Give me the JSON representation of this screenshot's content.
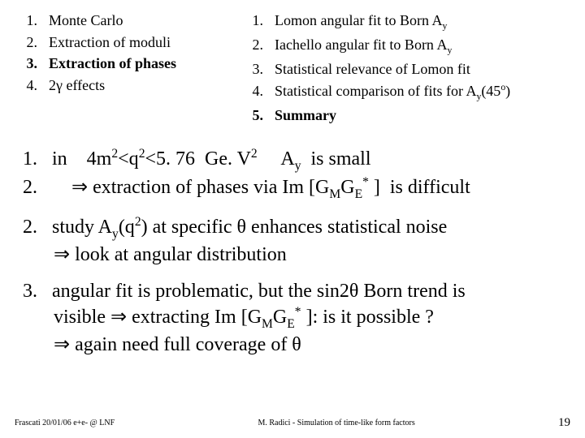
{
  "leftList": [
    {
      "n": "1.",
      "text": "Monte Carlo",
      "bold": false
    },
    {
      "n": "2.",
      "text": "Extraction of moduli",
      "bold": false
    },
    {
      "n": "3.",
      "text": "Extraction of phases",
      "bold": true
    },
    {
      "n": "4.",
      "text": "2γ effects",
      "bold": false
    }
  ],
  "rightList": [
    {
      "n": "1.",
      "html": "Lomon angular fit to Born A<sub>y</sub>",
      "bold": false
    },
    {
      "n": "2.",
      "html": "Iachello angular fit to Born A<sub>y</sub>",
      "bold": false
    },
    {
      "n": "3.",
      "html": "Statistical relevance of Lomon fit",
      "bold": false
    },
    {
      "n": "4.",
      "html": "Statistical comparison of fits for A<sub>y</sub>(45<sup>o</sup>)",
      "bold": false
    },
    {
      "n": "5.",
      "html": "Summary",
      "bold": true
    }
  ],
  "body": [
    "<span class='num'>1.</span> in&nbsp;&nbsp;&nbsp; 4m<sup>2</sup>&lt;q<sup>2</sup>&lt;5. 76&nbsp; Ge. V<sup>2</sup>&nbsp;&nbsp;&nbsp;&nbsp; A<sub>y</sub>&nbsp; is small<br><span class='num'>2.</span>&nbsp;&nbsp;&nbsp;&nbsp; ⇒ extraction of phases via Im [G<sub>M</sub>G<sub>E</sub><sup>*</sup> ]&nbsp; is difficult",
    "<span class='num'>2.</span> study A<sub>y</sub>(q<sup>2</sup>) at specific θ enhances statistical noise<br><span class='indent'>⇒ look at angular distribution</span>",
    "<span class='num'>3.</span> angular fit is problematic, but the sin2θ Born trend is <br><span class='indent'>visible ⇒ extracting Im [G<sub>M</sub>G<sub>E</sub><sup>*</sup> ]: is it possible ?</span><br><span class='indent'>⇒ again need full coverage of θ</span>"
  ],
  "footer": {
    "left": "Frascati 20/01/06  e+e-  @ LNF",
    "center": "M. Radici - Simulation of time-like form factors",
    "page": "19"
  }
}
